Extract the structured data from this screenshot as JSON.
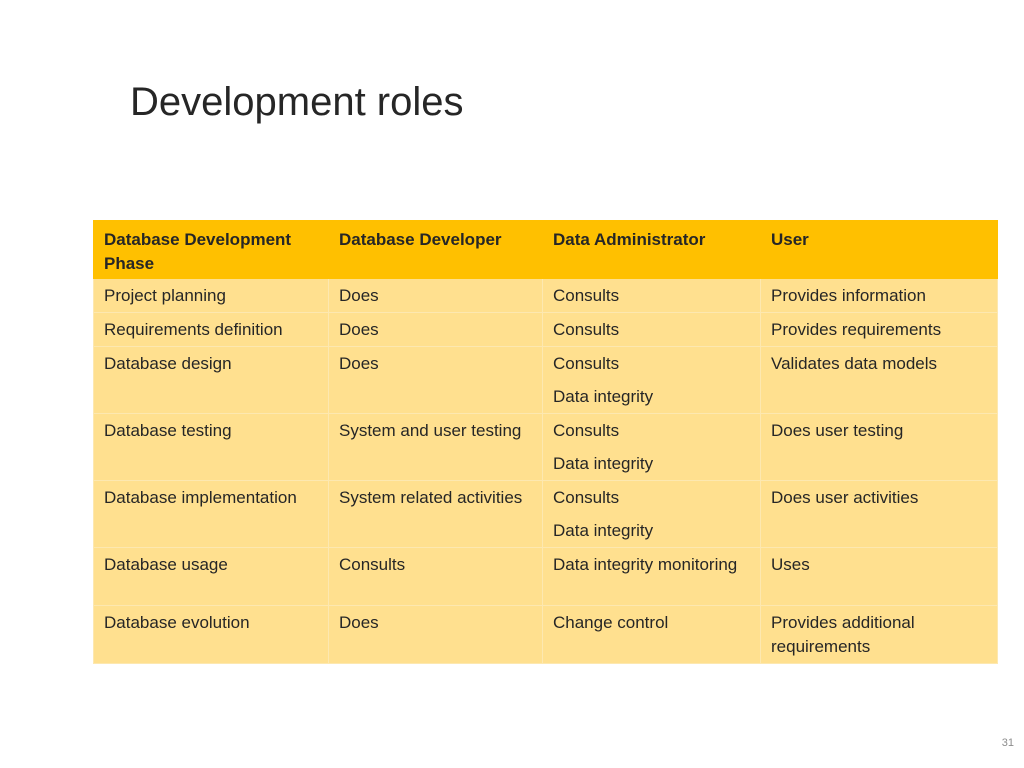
{
  "slide": {
    "title": "Development roles",
    "page_number": "31"
  },
  "table": {
    "headers": [
      "Database Development Phase",
      "Database Developer",
      "Data Administrator",
      "User"
    ],
    "rows": [
      {
        "phase": "Project planning",
        "developer": "Does",
        "admin": [
          "Consults"
        ],
        "user": "Provides information"
      },
      {
        "phase": "Requirements definition",
        "developer": "Does",
        "admin": [
          "Consults"
        ],
        "user": "Provides requirements"
      },
      {
        "phase": "Database design",
        "developer": "Does",
        "admin": [
          "Consults",
          "Data integrity"
        ],
        "user": "Validates data models"
      },
      {
        "phase": "Database testing",
        "developer": "System and user testing",
        "admin": [
          "Consults",
          "Data integrity"
        ],
        "user": "Does user testing"
      },
      {
        "phase": "Database implementation",
        "developer": "System related activities",
        "admin": [
          "Consults",
          "Data integrity"
        ],
        "user": "Does user activities"
      },
      {
        "phase": "Database usage",
        "developer": "Consults",
        "admin": [
          "Data integrity monitoring"
        ],
        "user": "Uses"
      },
      {
        "phase": "Database evolution",
        "developer": "Does",
        "admin": [
          "Change control"
        ],
        "user": "Provides additional requirements"
      }
    ]
  },
  "colors": {
    "header_background": "#ffc000",
    "body_background": "#ffe08f",
    "text": "#262626"
  }
}
